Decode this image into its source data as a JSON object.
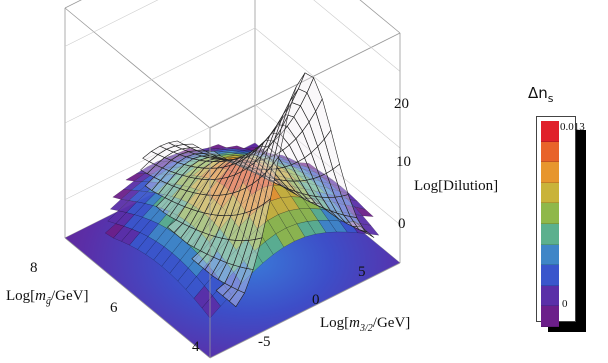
{
  "chart_data": {
    "type": "surface3d",
    "title": "",
    "axes": {
      "x": {
        "label": "Log[m_g̃/GeV]",
        "label_parts": [
          "Log[",
          "m",
          "g̃",
          "/GeV]"
        ],
        "ticks": [
          4,
          6,
          8
        ],
        "range": [
          3,
          9
        ]
      },
      "y": {
        "label": "Log[m_3/2/GeV]",
        "label_parts": [
          "Log[",
          "m",
          "3/2",
          "/GeV]"
        ],
        "ticks": [
          -5,
          0,
          5
        ],
        "range": [
          -8,
          8
        ]
      },
      "z": {
        "label": "Log[Dilution]",
        "ticks": [
          0,
          10,
          20
        ],
        "range": [
          -5,
          25
        ]
      }
    },
    "surfaces": [
      {
        "name": "Log[Dilution]",
        "color": "#f2eaf2",
        "peak": {
          "x": 3.0,
          "y": 0.0,
          "z": 28
        },
        "floor": 0
      },
      {
        "name": "Δn_s",
        "colored_by_value": true,
        "peak": {
          "x": 5.0,
          "y": -1.0
        },
        "max": 0.013,
        "min": 0
      }
    ],
    "colorbar": {
      "title": "Δn",
      "title_sub": "s",
      "top_label": "0.013",
      "bottom_label": "0",
      "colors": [
        "#e0202a",
        "#e8632a",
        "#e7962e",
        "#c9b33a",
        "#8fb84a",
        "#5bb08e",
        "#3f86c7",
        "#3a56cc",
        "#5a2fa8",
        "#6c1f8a"
      ]
    }
  }
}
